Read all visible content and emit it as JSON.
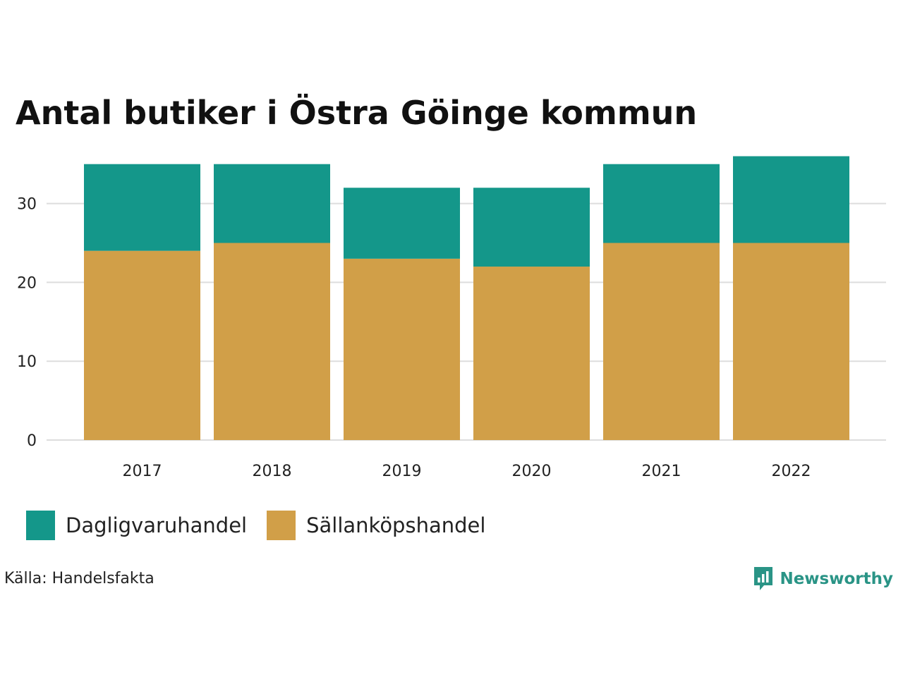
{
  "colors": {
    "dagligvaruhandel": "#14978a",
    "sallankopshandel": "#d19f48",
    "grid": "#dddddd",
    "brand": "#2a9486"
  },
  "chart_data": {
    "type": "bar",
    "stacked": true,
    "title": "Antal butiker i Östra Göinge kommun",
    "categories": [
      "2017",
      "2018",
      "2019",
      "2020",
      "2021",
      "2022"
    ],
    "series": [
      {
        "name": "Sällanköpshandel",
        "color": "#d19f48",
        "values": [
          24,
          25,
          23,
          22,
          25,
          25
        ]
      },
      {
        "name": "Dagligvaruhandel",
        "color": "#14978a",
        "values": [
          11,
          10,
          9,
          10,
          10,
          11
        ]
      }
    ],
    "yticks": [
      0,
      10,
      20,
      30
    ],
    "ylim": [
      0,
      36
    ],
    "xlabel": "",
    "ylabel": "",
    "grid": true,
    "legend_position": "bottom-left"
  },
  "legend": [
    {
      "label": "Dagligvaruhandel",
      "color_key": "dagligvaruhandel"
    },
    {
      "label": "Sällanköpshandel",
      "color_key": "sallankopshandel"
    }
  ],
  "source": "Källa: Handelsfakta",
  "brand": "Newsworthy"
}
